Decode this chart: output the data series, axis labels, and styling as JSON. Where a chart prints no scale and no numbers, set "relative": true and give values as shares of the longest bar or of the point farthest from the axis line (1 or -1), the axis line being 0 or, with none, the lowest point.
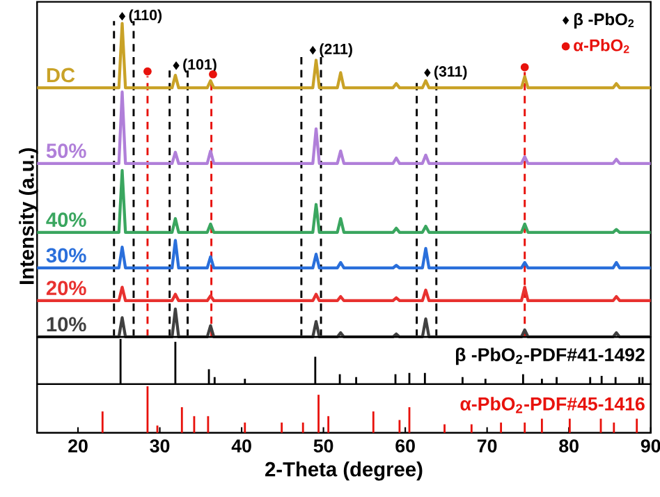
{
  "chart_data": [
    {
      "type": "line",
      "relative": true,
      "ylabel": "Intensity (a.u.)",
      "xlim": [
        15,
        90
      ],
      "tick_labels": false,
      "legend": "top right",
      "x": [
        15,
        25.0,
        25.4,
        25.8,
        31.5,
        31.9,
        32.3,
        35.8,
        36.2,
        36.6,
        48.7,
        49.1,
        49.5,
        51.7,
        52.1,
        52.5,
        58.5,
        58.9,
        59.3,
        62.1,
        62.5,
        62.9,
        74.2,
        74.6,
        75.0,
        85.4,
        85.8,
        86.2,
        90
      ],
      "series": [
        {
          "name": "DC",
          "color": "#c9a227",
          "values": [
            0.777,
            0.777,
            0.978,
            0.777,
            0.777,
            0.816,
            0.777,
            0.777,
            0.799,
            0.777,
            0.777,
            0.863,
            0.777,
            0.777,
            0.824,
            0.777,
            0.777,
            0.79,
            0.777,
            0.777,
            0.799,
            0.777,
            0.777,
            0.812,
            0.777,
            0.777,
            0.79,
            0.777,
            0.777
          ]
        },
        {
          "name": "50%",
          "color": "#b07fd9",
          "values": [
            0.541,
            0.541,
            0.764,
            0.541,
            0.541,
            0.576,
            0.541,
            0.541,
            0.58,
            0.541,
            0.541,
            0.649,
            0.541,
            0.541,
            0.58,
            0.541,
            0.541,
            0.558,
            0.541,
            0.541,
            0.567,
            0.541,
            0.541,
            0.562,
            0.541,
            0.541,
            0.554,
            0.541,
            0.541
          ]
        },
        {
          "name": "40%",
          "color": "#3aa65f",
          "values": [
            0.326,
            0.326,
            0.519,
            0.326,
            0.326,
            0.369,
            0.326,
            0.326,
            0.352,
            0.326,
            0.326,
            0.413,
            0.326,
            0.326,
            0.369,
            0.326,
            0.326,
            0.339,
            0.326,
            0.326,
            0.345,
            0.326,
            0.326,
            0.352,
            0.326,
            0.326,
            0.335,
            0.326,
            0.326
          ]
        },
        {
          "name": "30%",
          "color": "#2a6fdb",
          "values": [
            0.215,
            0.215,
            0.28,
            0.215,
            0.215,
            0.301,
            0.215,
            0.215,
            0.25,
            0.215,
            0.215,
            0.258,
            0.215,
            0.215,
            0.232,
            0.215,
            0.215,
            0.223,
            0.215,
            0.215,
            0.276,
            0.215,
            0.215,
            0.232,
            0.215,
            0.215,
            0.232,
            0.215,
            0.215
          ]
        },
        {
          "name": "20%",
          "color": "#e8312f",
          "values": [
            0.113,
            0.113,
            0.155,
            0.113,
            0.113,
            0.133,
            0.113,
            0.113,
            0.128,
            0.113,
            0.113,
            0.133,
            0.113,
            0.113,
            0.126,
            0.113,
            0.113,
            0.122,
            0.113,
            0.113,
            0.146,
            0.113,
            0.113,
            0.155,
            0.113,
            0.113,
            0.126,
            0.113,
            0.113
          ]
        },
        {
          "name": "10%",
          "color": "#404040",
          "values": [
            0,
            0,
            0.06,
            0,
            0,
            0.087,
            0,
            0,
            0.035,
            0,
            0,
            0.048,
            0,
            0,
            0.013,
            0,
            0,
            0.009,
            0,
            0,
            0.056,
            0,
            0,
            0.022,
            0,
            0,
            0.013,
            0,
            0
          ]
        },
        {
          "type": "scatter",
          "name": "β -PbO$_{2}$",
          "color": "#000000",
          "marker": "diamond",
          "x": [
            25.4,
            32.0,
            48.7,
            62.7
          ],
          "values": [
            1.0,
            0.846,
            0.894,
            0.824
          ]
        },
        {
          "type": "scatter",
          "name": "α-PbO$_{2}$",
          "color": "#e8120c",
          "marker": "circle",
          "x": [
            28.5,
            36.5,
            74.6
          ],
          "values": [
            0.828,
            0.819,
            0.841
          ]
        }
      ],
      "ref_lines": [
        {
          "axis": "x",
          "value": 24.4,
          "color": "#000000",
          "line_style": "dashed"
        },
        {
          "axis": "x",
          "value": 26.8,
          "color": "#000000",
          "line_style": "dashed"
        },
        {
          "axis": "x",
          "value": 31.2,
          "color": "#000000",
          "line_style": "dashed"
        },
        {
          "axis": "x",
          "value": 33.4,
          "color": "#000000",
          "line_style": "dashed"
        },
        {
          "axis": "x",
          "value": 47.3,
          "color": "#000000",
          "line_style": "dashed"
        },
        {
          "axis": "x",
          "value": 49.7,
          "color": "#000000",
          "line_style": "dashed"
        },
        {
          "axis": "x",
          "value": 61.4,
          "color": "#000000",
          "line_style": "dashed"
        },
        {
          "axis": "x",
          "value": 63.8,
          "color": "#000000",
          "line_style": "dashed"
        },
        {
          "axis": "x",
          "value": 28.5,
          "color": "#e8120c",
          "line_style": "dashed"
        },
        {
          "axis": "x",
          "value": 36.3,
          "color": "#e8120c",
          "line_style": "dashed"
        },
        {
          "axis": "x",
          "value": 74.6,
          "color": "#e8120c",
          "line_style": "dashed"
        }
      ],
      "annotations": [
        "(110)",
        "(101)",
        "(211)",
        "(311)"
      ]
    },
    {
      "type": "bar",
      "relative": true,
      "xlim": [
        15,
        90
      ],
      "tick_labels": false,
      "series": [
        {
          "name": "β -PbO$_{2}$-PDF#41-1492",
          "color": "#000000",
          "x": [
            25.2,
            31.9,
            36.0,
            36.7,
            40.4,
            49.0,
            52.0,
            54.0,
            58.8,
            60.5,
            62.4,
            67.0,
            69.8,
            74.4,
            76.7,
            78.5,
            82.6,
            84.0,
            85.7,
            88.6,
            89.0
          ],
          "values": [
            1,
            0.936,
            0.33,
            0.156,
            0.119,
            0.606,
            0.22,
            0.156,
            0.22,
            0.248,
            0.248,
            0.156,
            0.119,
            0.22,
            0.119,
            0.156,
            0.156,
            0.183,
            0.156,
            0.156,
            0.156
          ]
        }
      ]
    },
    {
      "type": "bar",
      "relative": true,
      "xlabel": "2-Theta (degree)",
      "xlim": [
        15,
        90
      ],
      "xticks": [
        20,
        30,
        40,
        50,
        60,
        70,
        80,
        90
      ],
      "tick_labels": "x",
      "series": [
        {
          "name": "α-PbO$_{2}$-PDF#45-1416",
          "color": "#e8120c",
          "x": [
            23.0,
            28.5,
            29.7,
            32.7,
            34.2,
            35.9,
            40.4,
            44.9,
            47.5,
            49.4,
            50.6,
            56.1,
            59.3,
            60.5,
            64.8,
            68.1,
            71.7,
            74.6,
            76.7,
            80.1,
            83.9,
            85.5,
            88.3
          ],
          "values": [
            0.459,
            1,
            0.156,
            0.55,
            0.358,
            0.358,
            0.22,
            0.22,
            0.22,
            0.817,
            0.358,
            0.459,
            0.275,
            0.55,
            0.183,
            0.183,
            0.22,
            0.22,
            0.303,
            0.303,
            0.303,
            0.22,
            0.303
          ]
        }
      ]
    }
  ]
}
